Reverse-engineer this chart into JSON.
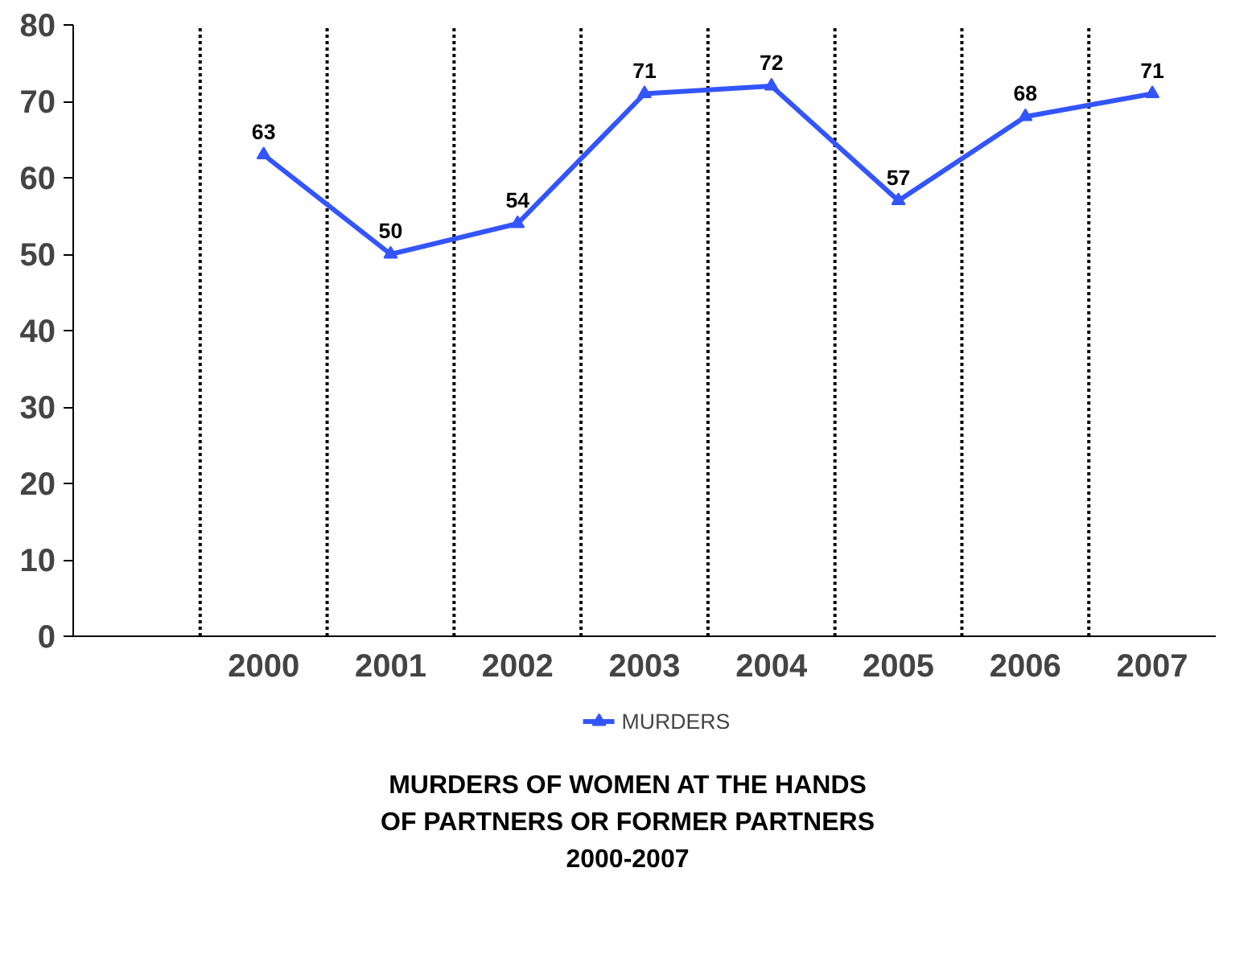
{
  "chart_data": {
    "type": "line",
    "title": "MURDERS OF WOMEN AT THE HANDS\nOF PARTNERS OR FORMER PARTNERS\n2000-2007",
    "categories": [
      null,
      "2000",
      "2001",
      "2002",
      "2003",
      "2004",
      "2005",
      "2006",
      "2007"
    ],
    "series": [
      {
        "name": "MURDERS",
        "color": "#3355ff",
        "values": [
          null,
          63,
          50,
          54,
          71,
          72,
          57,
          68,
          71
        ]
      }
    ],
    "ylim": [
      0,
      80
    ],
    "yticks": [
      0,
      10,
      20,
      30,
      40,
      50,
      60,
      70,
      80
    ],
    "grid": "x",
    "legend": "bottom",
    "marker": "triangle",
    "line_style": "solid",
    "data_labels": true
  }
}
